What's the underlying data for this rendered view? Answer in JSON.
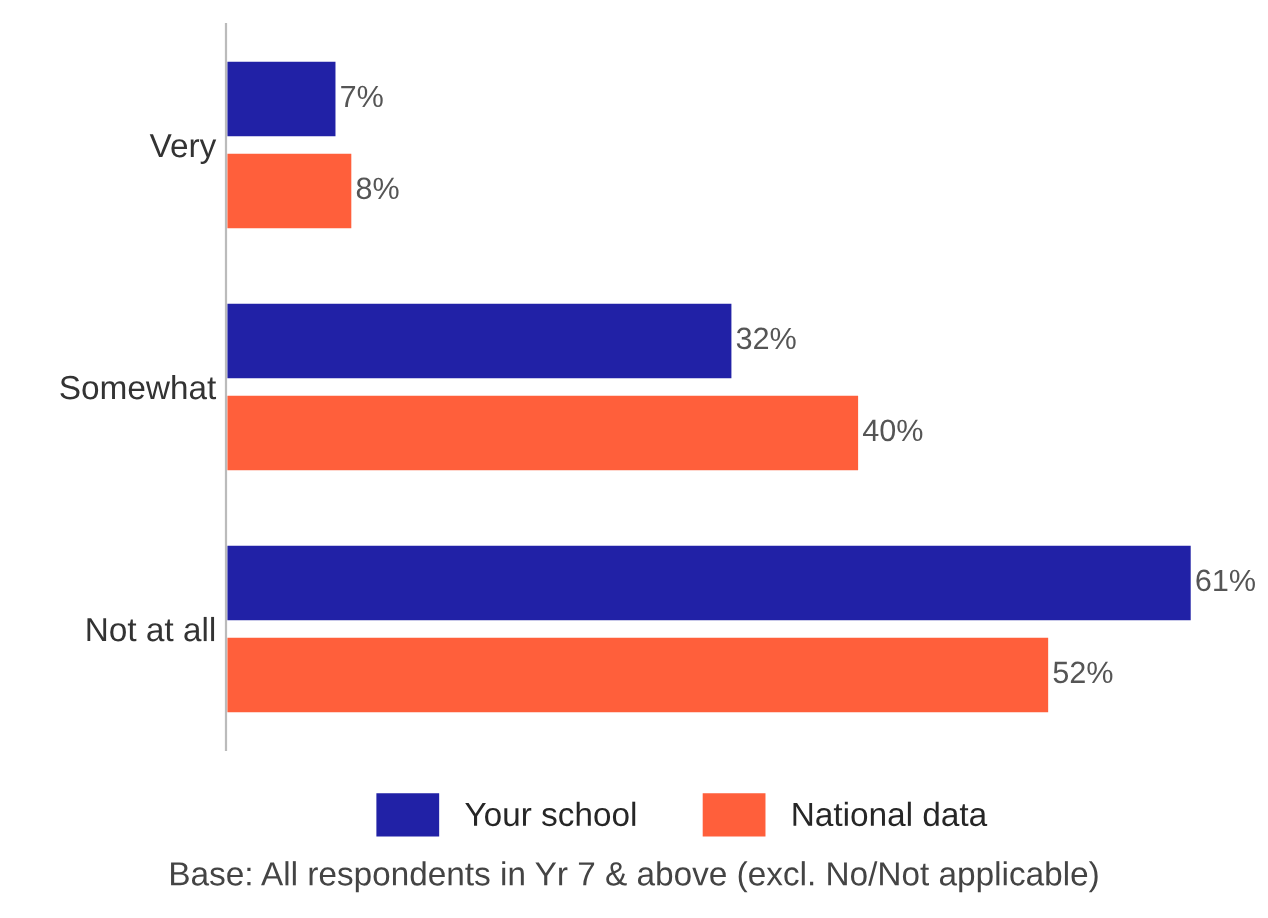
{
  "chart_data": {
    "type": "bar",
    "orientation": "horizontal",
    "categories": [
      "Very",
      "Somewhat",
      "Not at all"
    ],
    "series": [
      {
        "name": "Your school",
        "color": "#2121a6",
        "values": [
          7,
          32,
          61
        ],
        "value_labels": [
          "7%",
          "32%",
          "61%"
        ]
      },
      {
        "name": "National data",
        "color": "#ff5f3b",
        "values": [
          8,
          40,
          52
        ],
        "value_labels": [
          "8%",
          "40%",
          "52%"
        ]
      }
    ],
    "legend": "bottom",
    "grid": false,
    "annotations": [
      "Base: All respondents in Yr 7 & above (excl. No/Not applicable)"
    ]
  }
}
